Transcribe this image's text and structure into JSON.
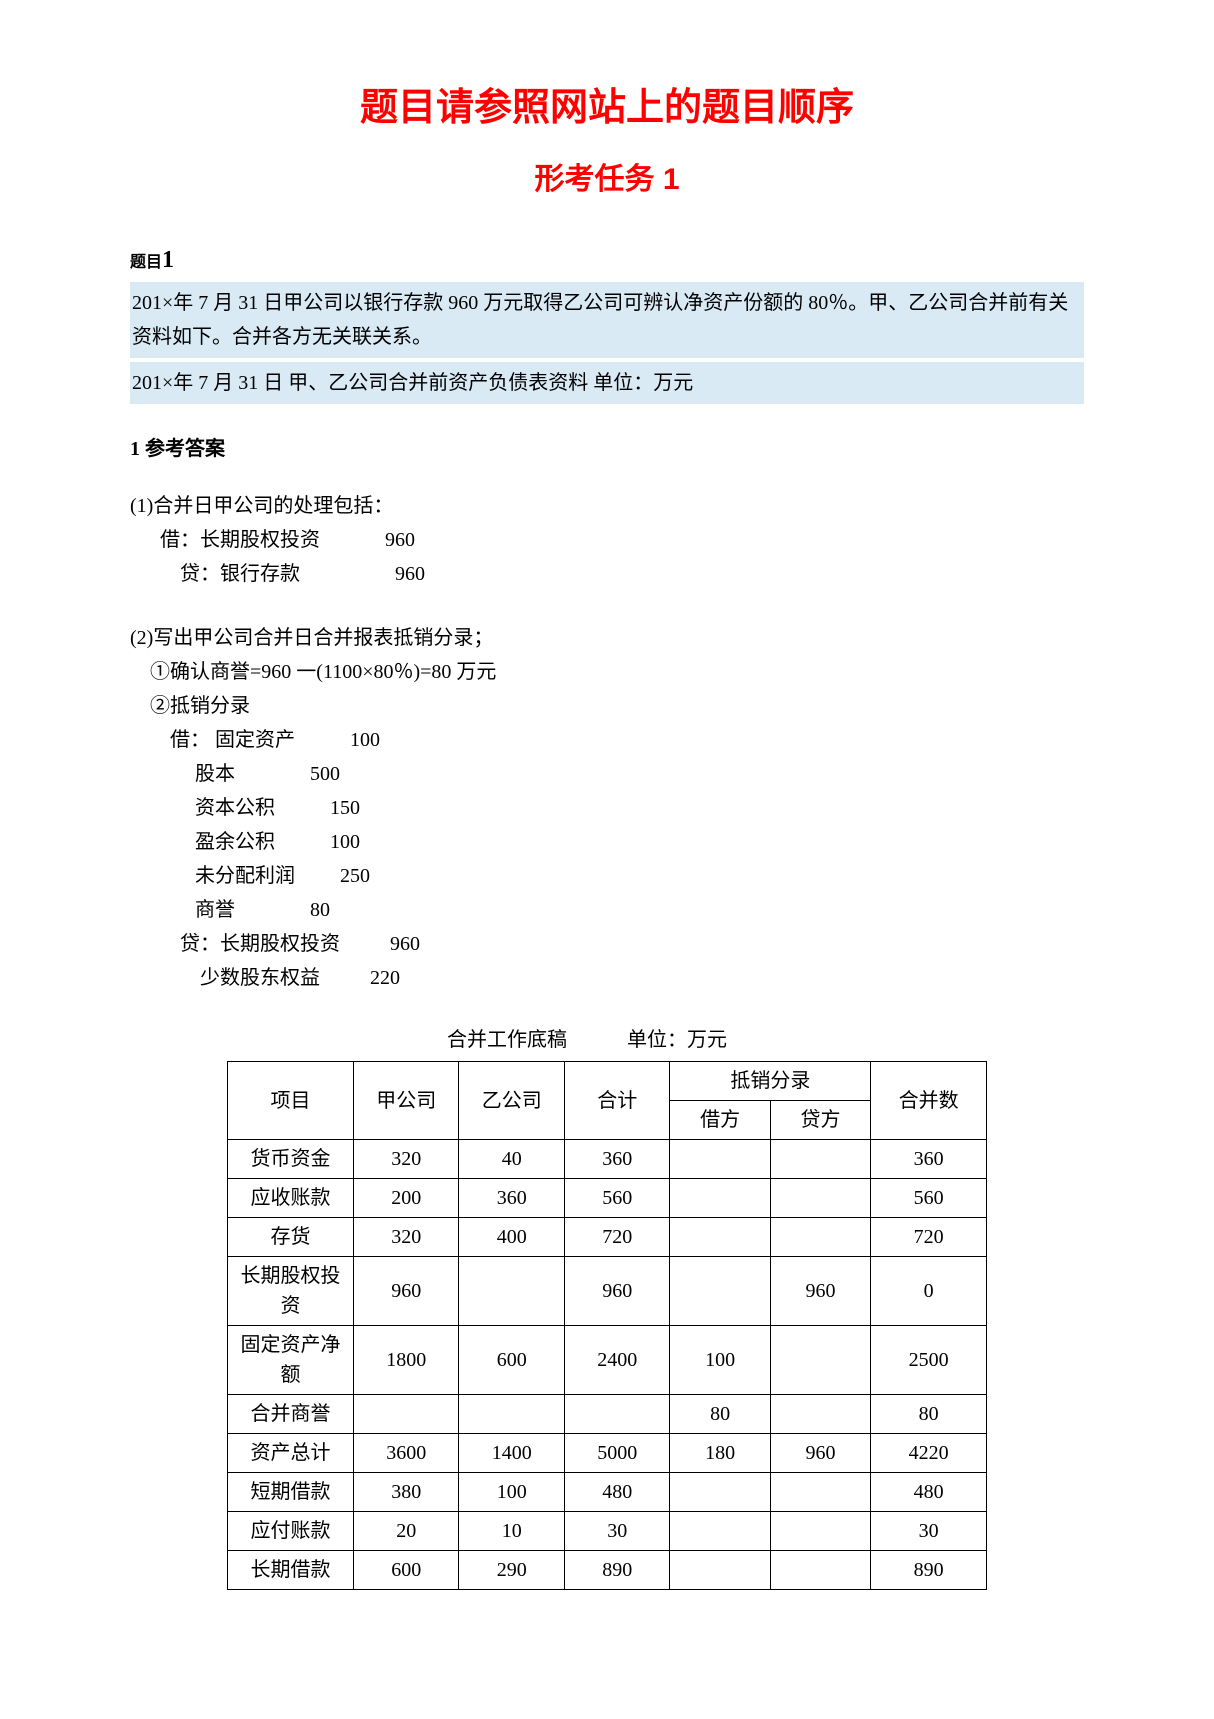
{
  "title_main": "题目请参照网站上的题目顺序",
  "title_sub": "形考任务 1",
  "q_label": "题目",
  "q_num": "1",
  "highlight_p1": "201×年 7 月 31 日甲公司以银行存款 960 万元取得乙公司可辨认净资产份额的 80％。甲、乙公司合并前有关资料如下。合并各方无关联关系。",
  "highlight_p2": "201×年 7 月 31 日   甲、乙公司合并前资产负债表资料    单位：万元",
  "answer_header": "1 参考答案",
  "answer_block1": "(1)合并日甲公司的处理包括：\n      借：长期股权投资             960\n          贷：银行存款                   960",
  "answer_block2": "(2)写出甲公司合并日合并报表抵销分录；\n    ①确认商誉=960 一(1100×80％)=80 万元\n    ②抵销分录\n        借： 固定资产           100\n             股本               500\n             资本公积           150\n             盈余公积           100\n             未分配利润         250\n             商誉               80\n          贷：长期股权投资          960\n              少数股东权益          220",
  "table_caption_left": "合并工作底稿",
  "table_caption_right": "单位：万元",
  "table": {
    "headers": {
      "item": "项目",
      "coA": "甲公司",
      "coB": "乙公司",
      "total": "合计",
      "elim": "抵销分录",
      "debit": "借方",
      "credit": "贷方",
      "merged": "合并数"
    },
    "rows": [
      {
        "item": "货币资金",
        "a": "320",
        "b": "40",
        "t": "360",
        "d": "",
        "c": "",
        "m": "360"
      },
      {
        "item": "应收账款",
        "a": "200",
        "b": "360",
        "t": "560",
        "d": "",
        "c": "",
        "m": "560"
      },
      {
        "item": "存货",
        "a": "320",
        "b": "400",
        "t": "720",
        "d": "",
        "c": "",
        "m": "720"
      },
      {
        "item": "长期股权投资",
        "a": "960",
        "b": "",
        "t": "960",
        "d": "",
        "c": "960",
        "m": "0"
      },
      {
        "item": "固定资产净额",
        "a": "1800",
        "b": "600",
        "t": "2400",
        "d": "100",
        "c": "",
        "m": "2500"
      },
      {
        "item": "合并商誉",
        "a": "",
        "b": "",
        "t": "",
        "d": "80",
        "c": "",
        "m": "80"
      },
      {
        "item": "资产总计",
        "a": "3600",
        "b": "1400",
        "t": "5000",
        "d": "180",
        "c": "960",
        "m": "4220"
      },
      {
        "item": "短期借款",
        "a": "380",
        "b": "100",
        "t": "480",
        "d": "",
        "c": "",
        "m": "480"
      },
      {
        "item": "应付账款",
        "a": "20",
        "b": "10",
        "t": "30",
        "d": "",
        "c": "",
        "m": "30"
      },
      {
        "item": "长期借款",
        "a": "600",
        "b": "290",
        "t": "890",
        "d": "",
        "c": "",
        "m": "890"
      }
    ]
  },
  "colors": {
    "red": "#ff0000",
    "highlight_bg": "#d9eaf5",
    "text": "#000000",
    "border": "#000000"
  }
}
